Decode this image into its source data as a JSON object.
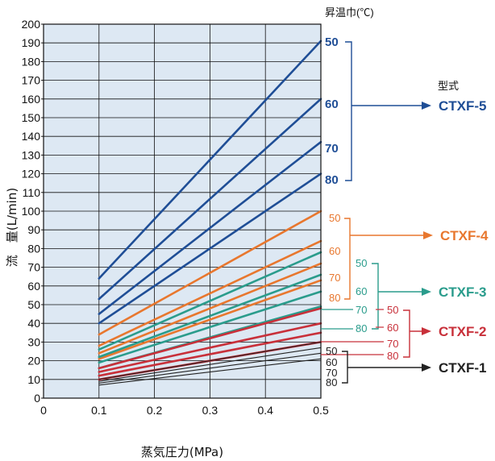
{
  "chart_data": {
    "type": "line",
    "xlabel": "蒸気圧力(MPa)",
    "ylabel": "流　量(L/min)",
    "xlim": [
      0,
      0.5
    ],
    "ylim": [
      0,
      200
    ],
    "xticks": [
      "0",
      "0.1",
      "0.2",
      "0.3",
      "0.4",
      "0.5"
    ],
    "yticks": [
      "0",
      "10",
      "20",
      "30",
      "40",
      "50",
      "60",
      "70",
      "80",
      "90",
      "100",
      "110",
      "120",
      "130",
      "140",
      "150",
      "160",
      "170",
      "180",
      "190",
      "200"
    ],
    "grid": true,
    "temp_header": "昇温巾(℃)",
    "model_header": "型式",
    "groups": [
      {
        "model": "CTXF-5",
        "color": "#1f4e96",
        "arrow_label": "60",
        "series": [
          {
            "name": "50",
            "x": [
              0.1,
              0.5
            ],
            "y": [
              64,
              191
            ]
          },
          {
            "name": "60",
            "x": [
              0.1,
              0.5
            ],
            "y": [
              53,
              160
            ]
          },
          {
            "name": "70",
            "x": [
              0.1,
              0.5
            ],
            "y": [
              45,
              137
            ]
          },
          {
            "name": "80",
            "x": [
              0.1,
              0.5
            ],
            "y": [
              40,
              120
            ]
          }
        ]
      },
      {
        "model": "CTXF-4",
        "color": "#e8772e",
        "arrow_label": "",
        "series": [
          {
            "name": "50",
            "x": [
              0.1,
              0.5
            ],
            "y": [
              34,
              100
            ]
          },
          {
            "name": "60",
            "x": [
              0.1,
              0.5
            ],
            "y": [
              28,
              84
            ]
          },
          {
            "name": "70",
            "x": [
              0.1,
              0.5
            ],
            "y": [
              24,
              72
            ]
          },
          {
            "name": "80",
            "x": [
              0.1,
              0.5
            ],
            "y": [
              21,
              63
            ]
          }
        ]
      },
      {
        "model": "CTXF-3",
        "color": "#2a9c8c",
        "arrow_label": "60",
        "series": [
          {
            "name": "50",
            "x": [
              0.1,
              0.5
            ],
            "y": [
              26,
              78
            ]
          },
          {
            "name": "60",
            "x": [
              0.1,
              0.5
            ],
            "y": [
              22,
              66
            ]
          },
          {
            "name": "70",
            "x": [
              0.1,
              0.5
            ],
            "y": [
              19,
              57
            ]
          },
          {
            "name": "80",
            "x": [
              0.1,
              0.5
            ],
            "y": [
              16,
              49
            ]
          }
        ]
      },
      {
        "model": "CTXF-2",
        "color": "#c8303a",
        "arrow_label": "",
        "series": [
          {
            "name": "50",
            "x": [
              0.1,
              0.5
            ],
            "y": [
              16,
              48
            ]
          },
          {
            "name": "60",
            "x": [
              0.1,
              0.5
            ],
            "y": [
              14,
              40
            ]
          },
          {
            "name": "70",
            "x": [
              0.1,
              0.5
            ],
            "y": [
              12,
              35
            ]
          },
          {
            "name": "80",
            "x": [
              0.1,
              0.5
            ],
            "y": [
              10,
              30
            ]
          }
        ]
      },
      {
        "model": "CTXF-1",
        "color": "#222222",
        "arrow_label": "",
        "series": [
          {
            "name": "50",
            "x": [
              0.1,
              0.5
            ],
            "y": [
              10,
              30
            ]
          },
          {
            "name": "60",
            "x": [
              0.1,
              0.5
            ],
            "y": [
              9,
              27
            ]
          },
          {
            "name": "70",
            "x": [
              0.1,
              0.5
            ],
            "y": [
              8,
              24
            ]
          },
          {
            "name": "80",
            "x": [
              0.1,
              0.5
            ],
            "y": [
              7,
              21
            ]
          }
        ]
      }
    ]
  }
}
